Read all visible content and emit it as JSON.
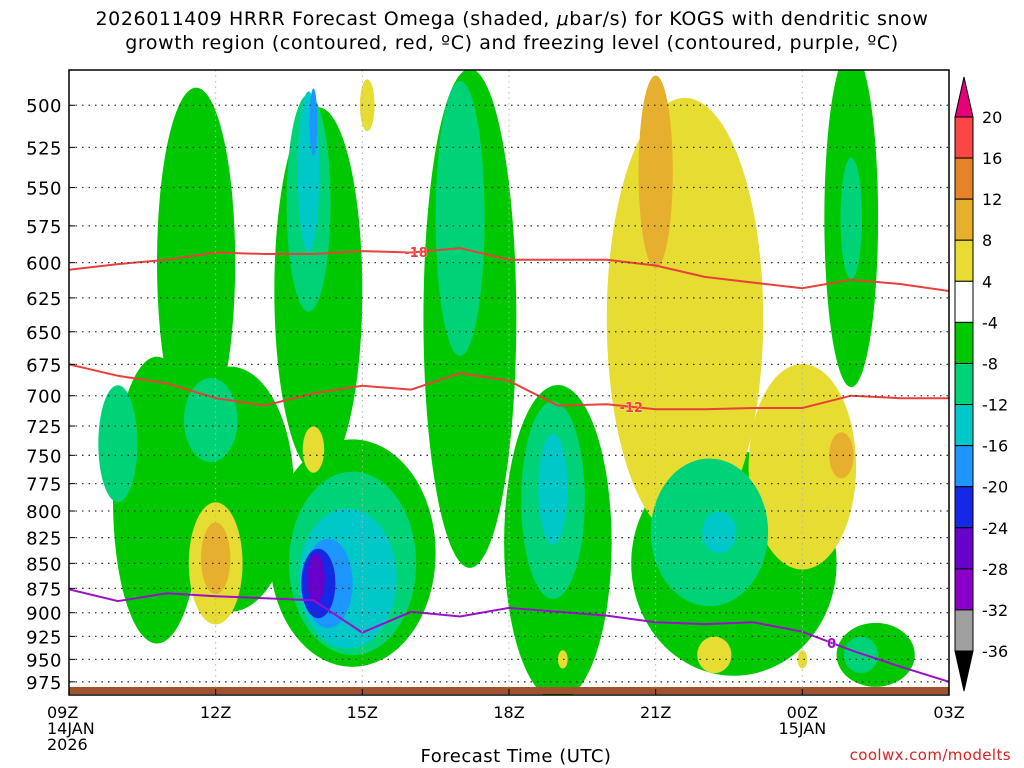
{
  "title": {
    "line1_prefix": "2026011409 HRRR Forecast Omega (shaded, ",
    "line1_mu": "μ",
    "line1_suffix": "bar/s) for KOGS with dendritic snow",
    "line2": "growth region (contoured, red, ºC) and freezing level (contoured, purple, ºC)"
  },
  "credit": "coolwx.com/modelts",
  "chart_data": {
    "type": "heatmap",
    "title": "2026011409 HRRR Forecast Omega (shaded, μbar/s) for KOGS with dendritic snow growth region (contoured, red, ºC) and freezing level (contoured, purple, ºC)",
    "xlabel": "Forecast Time (UTC)",
    "ylabel": "",
    "x_ticks": [
      {
        "hour": 9,
        "lines": [
          "09Z",
          "14JAN",
          "2026"
        ]
      },
      {
        "hour": 12,
        "lines": [
          "12Z"
        ]
      },
      {
        "hour": 15,
        "lines": [
          "15Z"
        ]
      },
      {
        "hour": 18,
        "lines": [
          "18Z"
        ]
      },
      {
        "hour": 21,
        "lines": [
          "21Z"
        ]
      },
      {
        "hour": 24,
        "lines": [
          "00Z",
          "15JAN"
        ]
      },
      {
        "hour": 27,
        "lines": [
          "03Z"
        ]
      }
    ],
    "xlim": [
      9,
      27
    ],
    "ylim": [
      990,
      480
    ],
    "y_ticks": [
      500,
      525,
      550,
      575,
      600,
      625,
      650,
      675,
      700,
      725,
      750,
      775,
      800,
      825,
      850,
      875,
      900,
      925,
      950,
      975
    ],
    "y_log_scale": true,
    "grid": true,
    "colorbar": {
      "levels": [
        -36,
        -32,
        -28,
        -24,
        -20,
        -16,
        -12,
        -8,
        -4,
        4,
        8,
        12,
        16,
        20
      ],
      "labels": [
        "20",
        "16",
        "12",
        "8",
        "4",
        "-4",
        "-8",
        "-12",
        "-16",
        "-20",
        "-24",
        "-28",
        "-32",
        "-36"
      ],
      "colors": [
        "#000000",
        "#a0a0a0",
        "#8a00c8",
        "#6a00cc",
        "#1428e6",
        "#1e96ff",
        "#00c8c8",
        "#00d278",
        "#00c800",
        "#ffffff",
        "#e6dc32",
        "#e6af2d",
        "#e68228",
        "#fa4646",
        "#e6007a"
      ]
    },
    "omega_cells": [
      {
        "name": "green-west",
        "level": -4,
        "x": 10.8,
        "p": 790,
        "rx": 0.9,
        "rp": 130
      },
      {
        "name": "green-west-top",
        "level": -4,
        "x": 11.6,
        "p": 600,
        "rx": 0.8,
        "rp": 120
      },
      {
        "name": "green-west-col",
        "level": -4,
        "x": 12.3,
        "p": 780,
        "rx": 1.3,
        "rp": 110
      },
      {
        "name": "teal-west",
        "level": -8,
        "x": 10.0,
        "p": 740,
        "rx": 0.4,
        "rp": 50
      },
      {
        "name": "teal-west2",
        "level": -8,
        "x": 11.9,
        "p": 720,
        "rx": 0.55,
        "rp": 35
      },
      {
        "name": "green-col2",
        "level": -4,
        "x": 14.1,
        "p": 620,
        "rx": 0.9,
        "rp": 130
      },
      {
        "name": "teal-col2",
        "level": -8,
        "x": 13.9,
        "p": 560,
        "rx": 0.45,
        "rp": 70
      },
      {
        "name": "aqua-col2",
        "level": -12,
        "x": 13.9,
        "p": 540,
        "rx": 0.22,
        "rp": 50
      },
      {
        "name": "blue-col2",
        "level": -16,
        "x": 14.0,
        "p": 510,
        "rx": 0.08,
        "rp": 20
      },
      {
        "name": "green-lower",
        "level": -4,
        "x": 14.8,
        "p": 840,
        "rx": 1.7,
        "rp": 110
      },
      {
        "name": "teal-lower",
        "level": -8,
        "x": 14.8,
        "p": 850,
        "rx": 1.3,
        "rp": 90
      },
      {
        "name": "aqua-lower",
        "level": -12,
        "x": 14.7,
        "p": 865,
        "rx": 1.0,
        "rp": 70
      },
      {
        "name": "blue-lower",
        "level": -16,
        "x": 14.3,
        "p": 870,
        "rx": 0.5,
        "rp": 45
      },
      {
        "name": "dblue-lower",
        "level": -20,
        "x": 14.1,
        "p": 870,
        "rx": 0.35,
        "rp": 35
      },
      {
        "name": "purple-lower",
        "level": -24,
        "x": 14.05,
        "p": 865,
        "rx": 0.18,
        "rp": 25
      },
      {
        "name": "green-col3",
        "level": -4,
        "x": 17.2,
        "p": 640,
        "rx": 0.95,
        "rp": 180
      },
      {
        "name": "teal-col3",
        "level": -8,
        "x": 17.0,
        "p": 570,
        "rx": 0.5,
        "rp": 90
      },
      {
        "name": "green-col4",
        "level": -4,
        "x": 19.0,
        "p": 830,
        "rx": 1.1,
        "rp": 150
      },
      {
        "name": "teal-col4",
        "level": -8,
        "x": 18.9,
        "p": 790,
        "rx": 0.65,
        "rp": 90
      },
      {
        "name": "aqua-col4",
        "level": -12,
        "x": 18.9,
        "p": 780,
        "rx": 0.3,
        "rp": 50
      },
      {
        "name": "green-east",
        "level": -4,
        "x": 22.6,
        "p": 850,
        "rx": 2.1,
        "rp": 110
      },
      {
        "name": "teal-east",
        "level": -8,
        "x": 22.1,
        "p": 820,
        "rx": 1.2,
        "rp": 70
      },
      {
        "name": "aqua-east",
        "level": -12,
        "x": 22.3,
        "p": 820,
        "rx": 0.35,
        "rp": 20
      },
      {
        "name": "green-ne",
        "level": -4,
        "x": 25.0,
        "p": 570,
        "rx": 0.55,
        "rp": 110
      },
      {
        "name": "teal-ne",
        "level": -8,
        "x": 25.0,
        "p": 570,
        "rx": 0.22,
        "rp": 40
      },
      {
        "name": "green-se",
        "level": -4,
        "x": 25.5,
        "p": 945,
        "rx": 0.8,
        "rp": 35
      },
      {
        "name": "teal-se",
        "level": -8,
        "x": 25.2,
        "p": 945,
        "rx": 0.35,
        "rp": 20
      },
      {
        "name": "yellow-ne",
        "level": 4,
        "x": 21.6,
        "p": 640,
        "rx": 1.6,
        "rp": 160
      },
      {
        "name": "yellow-ne2",
        "level": 4,
        "x": 24.0,
        "p": 760,
        "rx": 1.1,
        "rp": 90
      },
      {
        "name": "gold-ne",
        "level": 8,
        "x": 21.0,
        "p": 540,
        "rx": 0.35,
        "rp": 60
      },
      {
        "name": "gold-e",
        "level": 8,
        "x": 24.8,
        "p": 750,
        "rx": 0.25,
        "rp": 20
      },
      {
        "name": "yellow-w",
        "level": 4,
        "x": 12.0,
        "p": 850,
        "rx": 0.55,
        "rp": 60
      },
      {
        "name": "gold-w",
        "level": 8,
        "x": 12.0,
        "p": 845,
        "rx": 0.3,
        "rp": 35
      },
      {
        "name": "yellow-mid",
        "level": 4,
        "x": 14.0,
        "p": 745,
        "rx": 0.22,
        "rp": 20
      },
      {
        "name": "yellow-top",
        "level": 4,
        "x": 15.1,
        "p": 500,
        "rx": 0.15,
        "rp": 15
      },
      {
        "name": "yellow-s1",
        "level": 4,
        "x": 22.2,
        "p": 945,
        "rx": 0.35,
        "rp": 20
      },
      {
        "name": "yellow-s2",
        "level": 4,
        "x": 19.1,
        "p": 950,
        "rx": 0.1,
        "rp": 10
      },
      {
        "name": "yellow-s3",
        "level": 4,
        "x": 24.0,
        "p": 950,
        "rx": 0.1,
        "rp": 10
      }
    ],
    "contours": [
      {
        "name": "dgz-minus18",
        "label": "-18",
        "color": "#e8403a",
        "label_x": 16.1,
        "x": [
          9,
          10,
          11,
          12,
          13,
          14,
          15,
          16,
          17,
          18,
          19,
          20,
          21,
          22,
          23,
          24,
          25,
          26,
          27
        ],
        "p": [
          605,
          601,
          598,
          593,
          594,
          594,
          592,
          593,
          590,
          598,
          598,
          598,
          602,
          610,
          614,
          618,
          612,
          615,
          620
        ]
      },
      {
        "name": "dgz-minus12",
        "label": "-12",
        "color": "#e8403a",
        "label_x": 20.5,
        "x": [
          9,
          10,
          11,
          12,
          13,
          14,
          15,
          16,
          17,
          18,
          19,
          20,
          21,
          22,
          23,
          24,
          25,
          26,
          27
        ],
        "p": [
          675,
          684,
          690,
          702,
          708,
          698,
          692,
          695,
          682,
          688,
          708,
          707,
          711,
          711,
          710,
          710,
          700,
          702,
          702
        ]
      },
      {
        "name": "freezing-level-0",
        "label": "0",
        "color": "#9a10c8",
        "label_x": 24.6,
        "x": [
          9,
          10,
          11,
          12,
          13,
          14,
          15,
          16,
          17,
          18,
          19,
          20,
          21,
          22,
          23,
          24,
          25,
          26,
          27
        ],
        "p": [
          876,
          888,
          880,
          883,
          885,
          887,
          921,
          899,
          904,
          895,
          899,
          903,
          910,
          912,
          910,
          920,
          940,
          958,
          975
        ]
      }
    ]
  }
}
